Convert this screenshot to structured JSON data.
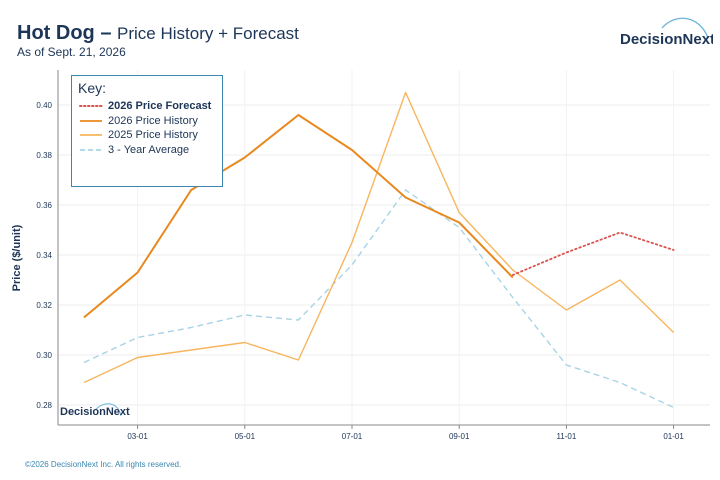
{
  "header": {
    "product": "Hot Dog",
    "separator": "–",
    "subtitle": "Price History + Forecast",
    "as_of": "As of Sept. 21, 2026"
  },
  "brand": {
    "name": "DecisionNext"
  },
  "legend": {
    "title": "Key:",
    "items": [
      {
        "label": "2026 Price Forecast",
        "style": "dotted",
        "color": "#d9534f"
      },
      {
        "label": "2026 Price History",
        "style": "solid",
        "color": "#e8891f"
      },
      {
        "label": "2025 Price History",
        "style": "solid",
        "color": "#f7b55e"
      },
      {
        "label": "3 - Year Average",
        "style": "dashed",
        "color": "#a8d3e6"
      }
    ]
  },
  "footer": {
    "copyright": "©2026 DecisionNext Inc. All rights reserved."
  },
  "chart_data": {
    "type": "line",
    "ylabel": "Price ($/unit)",
    "xlabel": "",
    "ylim": [
      0.272,
      0.414
    ],
    "yticks": [
      0.28,
      0.3,
      0.32,
      0.34,
      0.36,
      0.38,
      0.4
    ],
    "xticks": [
      "03-01",
      "05-01",
      "07-01",
      "09-01",
      "11-01",
      "01-01"
    ],
    "grid": true,
    "legend_position": "top-left",
    "series": [
      {
        "name": "2026 Price History",
        "color": "#e8891f",
        "style": "solid",
        "x": [
          "02-01",
          "03-01",
          "04-01",
          "05-01",
          "06-01",
          "07-01",
          "08-01",
          "09-01",
          "10-01"
        ],
        "values": [
          0.315,
          0.333,
          0.366,
          0.379,
          0.396,
          0.382,
          0.363,
          0.353,
          0.331
        ]
      },
      {
        "name": "2025 Price History",
        "color": "#f7b55e",
        "style": "solid",
        "x": [
          "02-01",
          "03-01",
          "04-01",
          "05-01",
          "06-01",
          "07-01",
          "08-01",
          "09-01",
          "10-01",
          "11-01",
          "12-01",
          "01-01"
        ],
        "values": [
          0.289,
          0.299,
          0.302,
          0.305,
          0.298,
          0.345,
          0.405,
          0.357,
          0.334,
          0.318,
          0.33,
          0.309
        ]
      },
      {
        "name": "3 - Year Average",
        "color": "#a8d3e6",
        "style": "dashed",
        "x": [
          "02-01",
          "03-01",
          "04-01",
          "05-01",
          "06-01",
          "07-01",
          "08-01",
          "09-01",
          "10-01",
          "11-01",
          "12-01",
          "01-01"
        ],
        "values": [
          0.297,
          0.307,
          0.311,
          0.316,
          0.314,
          0.336,
          0.366,
          0.351,
          0.323,
          0.296,
          0.289,
          0.279
        ]
      },
      {
        "name": "2026 Price Forecast",
        "color": "#d9534f",
        "style": "dotted",
        "x": [
          "10-01",
          "11-01",
          "12-01",
          "01-01"
        ],
        "values": [
          0.332,
          0.341,
          0.349,
          0.342
        ]
      }
    ]
  }
}
